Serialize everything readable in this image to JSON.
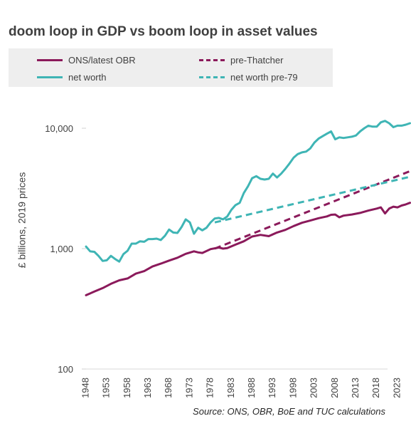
{
  "chart_data": {
    "type": "line",
    "title": "doom loop in GDP vs boom loop in asset values",
    "ylabel": "£ billions, 2019 prices",
    "xlabel": "",
    "yscale": "log",
    "ylim": [
      100,
      20000
    ],
    "xlim": [
      1948,
      2027
    ],
    "grid": false,
    "legend_position": "top",
    "yticks": [
      100,
      1000,
      10000
    ],
    "ytick_labels": [
      "100",
      "1,000",
      "10,000"
    ],
    "xtick_labels": [
      "1948",
      "1953",
      "1958",
      "1963",
      "1968",
      "1973",
      "1978",
      "1983",
      "1988",
      "1993",
      "1998",
      "2003",
      "2008",
      "2013",
      "2018",
      "2023"
    ],
    "source": "Source: ONS, OBR, BoE and TUC calculations",
    "colors": {
      "gdp": "#8b1a5b",
      "networth": "#3fb5b5"
    },
    "series": [
      {
        "name": "ONS/latest OBR",
        "color": "#8b1a5b",
        "dashed": false,
        "x": [
          1948,
          1950,
          1952,
          1954,
          1956,
          1958,
          1960,
          1962,
          1964,
          1966,
          1968,
          1970,
          1972,
          1974,
          1975,
          1976,
          1978,
          1980,
          1981,
          1982,
          1984,
          1986,
          1988,
          1990,
          1992,
          1994,
          1996,
          1998,
          2000,
          2002,
          2004,
          2006,
          2007,
          2008,
          2009,
          2010,
          2012,
          2014,
          2016,
          2018,
          2019,
          2020,
          2021,
          2022,
          2023,
          2024,
          2025,
          2026
        ],
        "values": [
          410,
          440,
          470,
          510,
          545,
          565,
          620,
          650,
          710,
          750,
          795,
          840,
          905,
          950,
          930,
          920,
          990,
          1020,
          1000,
          1010,
          1080,
          1150,
          1260,
          1300,
          1270,
          1360,
          1430,
          1540,
          1640,
          1710,
          1790,
          1850,
          1910,
          1920,
          1820,
          1880,
          1920,
          1980,
          2070,
          2150,
          2200,
          1960,
          2150,
          2230,
          2200,
          2280,
          2330,
          2400
        ]
      },
      {
        "name": "pre-Thatcher",
        "color": "#8b1a5b",
        "dashed": true,
        "x": [
          1979,
          2026
        ],
        "values": [
          1000,
          4400
        ]
      },
      {
        "name": "net worth",
        "color": "#3fb5b5",
        "dashed": false,
        "x": [
          1948,
          1949,
          1950,
          1951,
          1952,
          1953,
          1954,
          1955,
          1956,
          1957,
          1958,
          1959,
          1960,
          1961,
          1962,
          1963,
          1964,
          1965,
          1966,
          1967,
          1968,
          1969,
          1970,
          1971,
          1972,
          1973,
          1974,
          1975,
          1976,
          1977,
          1978,
          1979,
          1980,
          1981,
          1982,
          1983,
          1984,
          1985,
          1986,
          1987,
          1988,
          1989,
          1990,
          1991,
          1992,
          1993,
          1994,
          1995,
          1996,
          1997,
          1998,
          1999,
          2000,
          2001,
          2002,
          2003,
          2004,
          2005,
          2006,
          2007,
          2008,
          2009,
          2010,
          2011,
          2012,
          2013,
          2014,
          2015,
          2016,
          2017,
          2018,
          2019,
          2020,
          2021,
          2022,
          2023,
          2024,
          2025,
          2026
        ],
        "values": [
          1040,
          950,
          940,
          870,
          790,
          800,
          870,
          820,
          780,
          900,
          960,
          1100,
          1100,
          1150,
          1140,
          1200,
          1200,
          1210,
          1180,
          1280,
          1440,
          1360,
          1350,
          1510,
          1750,
          1650,
          1330,
          1490,
          1420,
          1490,
          1650,
          1780,
          1800,
          1750,
          1850,
          2100,
          2300,
          2400,
          2900,
          3300,
          3850,
          4000,
          3800,
          3750,
          3800,
          4200,
          3900,
          4200,
          4600,
          5100,
          5700,
          6100,
          6300,
          6400,
          6800,
          7600,
          8200,
          8600,
          9000,
          9400,
          8100,
          8400,
          8300,
          8400,
          8500,
          8700,
          9400,
          10000,
          10500,
          10300,
          10300,
          11200,
          11500,
          11000,
          10200,
          10500,
          10500,
          10700,
          11000
        ]
      },
      {
        "name": "net worth pre-79",
        "color": "#3fb5b5",
        "dashed": true,
        "x": [
          1979,
          2026
        ],
        "values": [
          1650,
          3950
        ]
      }
    ]
  }
}
